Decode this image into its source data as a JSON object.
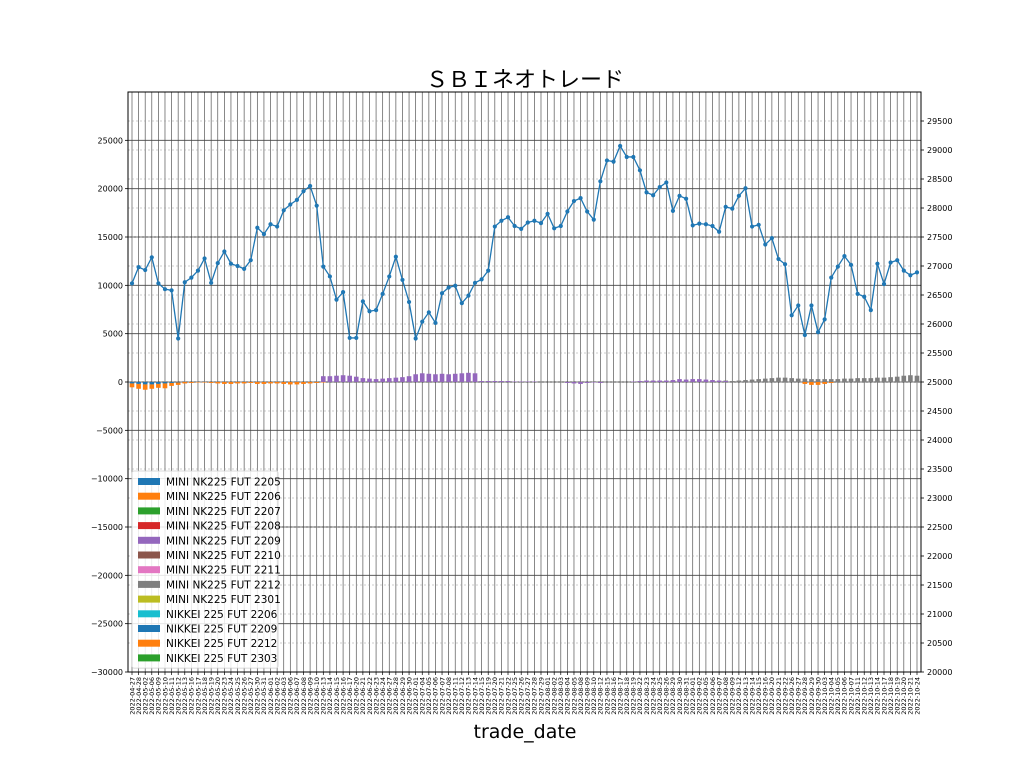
{
  "chart_data": {
    "type": "bar+line",
    "title": "ＳＢＩネオトレード",
    "xlabel": "trade_date",
    "ylabel_left": "",
    "ylabel_right": "",
    "ylim_left": [
      -30000,
      30000
    ],
    "yticks_left": [
      -30000,
      -25000,
      -20000,
      -15000,
      -10000,
      -5000,
      0,
      5000,
      10000,
      15000,
      20000,
      25000
    ],
    "ylim_right": [
      20000,
      30000
    ],
    "yticks_right": [
      20000,
      20500,
      21000,
      21500,
      22000,
      22500,
      23000,
      23500,
      24000,
      24500,
      25000,
      25500,
      26000,
      26500,
      27000,
      27500,
      28000,
      28500,
      29000,
      29500
    ],
    "grid": true,
    "legend_placement": "lower-left",
    "dates": [
      "2022-04-27",
      "2022-04-28",
      "2022-05-02",
      "2022-05-06",
      "2022-05-09",
      "2022-05-10",
      "2022-05-11",
      "2022-05-12",
      "2022-05-13",
      "2022-05-16",
      "2022-05-17",
      "2022-05-18",
      "2022-05-19",
      "2022-05-20",
      "2022-05-23",
      "2022-05-24",
      "2022-05-25",
      "2022-05-26",
      "2022-05-27",
      "2022-05-30",
      "2022-05-31",
      "2022-06-01",
      "2022-06-02",
      "2022-06-03",
      "2022-06-06",
      "2022-06-07",
      "2022-06-08",
      "2022-06-09",
      "2022-06-10",
      "2022-06-13",
      "2022-06-14",
      "2022-06-15",
      "2022-06-16",
      "2022-06-17",
      "2022-06-20",
      "2022-06-21",
      "2022-06-22",
      "2022-06-23",
      "2022-06-24",
      "2022-06-27",
      "2022-06-28",
      "2022-06-29",
      "2022-06-30",
      "2022-07-01",
      "2022-07-04",
      "2022-07-05",
      "2022-07-06",
      "2022-07-07",
      "2022-07-08",
      "2022-07-11",
      "2022-07-12",
      "2022-07-13",
      "2022-07-14",
      "2022-07-15",
      "2022-07-19",
      "2022-07-20",
      "2022-07-21",
      "2022-07-22",
      "2022-07-25",
      "2022-07-26",
      "2022-07-27",
      "2022-07-28",
      "2022-07-29",
      "2022-08-01",
      "2022-08-02",
      "2022-08-03",
      "2022-08-04",
      "2022-08-05",
      "2022-08-08",
      "2022-08-09",
      "2022-08-10",
      "2022-08-12",
      "2022-08-15",
      "2022-08-16",
      "2022-08-17",
      "2022-08-18",
      "2022-08-19",
      "2022-08-22",
      "2022-08-23",
      "2022-08-24",
      "2022-08-25",
      "2022-08-26",
      "2022-08-29",
      "2022-08-30",
      "2022-08-31",
      "2022-09-01",
      "2022-09-02",
      "2022-09-05",
      "2022-09-06",
      "2022-09-07",
      "2022-09-08",
      "2022-09-09",
      "2022-09-12",
      "2022-09-13",
      "2022-09-14",
      "2022-09-15",
      "2022-09-16",
      "2022-09-20",
      "2022-09-21",
      "2022-09-22",
      "2022-09-26",
      "2022-09-27",
      "2022-09-28",
      "2022-09-29",
      "2022-09-30",
      "2022-10-03",
      "2022-10-04",
      "2022-10-05",
      "2022-10-06",
      "2022-10-07",
      "2022-10-11",
      "2022-10-12",
      "2022-10-13",
      "2022-10-14",
      "2022-10-17",
      "2022-10-18",
      "2022-10-19",
      "2022-10-20",
      "2022-10-21",
      "2022-10-24"
    ],
    "line": {
      "name": "",
      "color": "#1f77b4",
      "values": [
        26700,
        26980,
        26930,
        27150,
        26700,
        26600,
        26580,
        25750,
        26720,
        26800,
        26920,
        27130,
        26710,
        27050,
        27250,
        27040,
        27000,
        26950,
        27100,
        27660,
        27550,
        27720,
        27680,
        27960,
        28060,
        28140,
        28290,
        28380,
        28040,
        26990,
        26820,
        26420,
        26550,
        25760,
        25760,
        26390,
        26220,
        26240,
        26520,
        26820,
        27160,
        26760,
        26380,
        25750,
        26040,
        26200,
        26020,
        26530,
        26630,
        26660,
        26360,
        26490,
        26710,
        26770,
        26920,
        27680,
        27780,
        27840,
        27690,
        27640,
        27750,
        27780,
        27740,
        27900,
        27650,
        27690,
        27940,
        28120,
        28170,
        27940,
        27800,
        28460,
        28820,
        28800,
        29070,
        28880,
        28880,
        28650,
        28270,
        28220,
        28360,
        28440,
        27950,
        28210,
        28160,
        27700,
        27730,
        27720,
        27690,
        27590,
        28020,
        27990,
        28210,
        28340,
        27680,
        27710,
        27370,
        27480,
        27120,
        27030,
        26150,
        26320,
        25810,
        26320,
        25860,
        26080,
        26800,
        26990,
        27170,
        27020,
        26520,
        26470,
        26240,
        27040,
        26690,
        27060,
        27100,
        26920,
        26840,
        26890
      ]
    },
    "bar_series": [
      {
        "name": "MINI NK225 FUT 2205",
        "color": "#1f77b4",
        "values": [
          -150,
          -200,
          -250,
          -250,
          -200,
          -150,
          -100,
          -50,
          0,
          0,
          0,
          0,
          0,
          0,
          0,
          0,
          0,
          0,
          0,
          0
        ]
      },
      {
        "name": "MINI NK225 FUT 2206",
        "color": "#ff7f0e",
        "values": [
          -400,
          -500,
          -550,
          -450,
          -400,
          -500,
          -300,
          -250,
          -150,
          -100,
          -50,
          -50,
          -100,
          -150,
          -200,
          -200,
          -150,
          -150,
          -100,
          -200,
          -200,
          -150,
          -150,
          -200,
          -250,
          -250,
          -200,
          -150,
          -100,
          -50,
          0,
          0,
          0,
          0,
          0,
          0
        ]
      },
      {
        "name": "MINI NK225 FUT 2207",
        "color": "#2ca02c",
        "values": []
      },
      {
        "name": "MINI NK225 FUT 2208",
        "color": "#d62728",
        "values": []
      },
      {
        "name": "MINI NK225 FUT 2209",
        "color": "#9467bd",
        "values": [
          0,
          0,
          0,
          0,
          0,
          0,
          0,
          0,
          0,
          0,
          0,
          0,
          0,
          0,
          0,
          0,
          0,
          0,
          0,
          0,
          0,
          0,
          0,
          0,
          0,
          0,
          0,
          0,
          0,
          600,
          600,
          650,
          700,
          650,
          550,
          400,
          350,
          300,
          350,
          400,
          450,
          500,
          600,
          800,
          900,
          850,
          800,
          850,
          800,
          850,
          900,
          950,
          900,
          100,
          100,
          100,
          100,
          100,
          50,
          50,
          50,
          50,
          0,
          0,
          0,
          0,
          -100,
          -150,
          -200,
          -100,
          -50,
          -100,
          0,
          0,
          0,
          0,
          50,
          100,
          150,
          150,
          150,
          150,
          200,
          300,
          250,
          300,
          300,
          250,
          200,
          150,
          100,
          0,
          0,
          0,
          0,
          0,
          0,
          0,
          0,
          0,
          0,
          0,
          0,
          0,
          0,
          0,
          0,
          0,
          0,
          0,
          0,
          0,
          0,
          0,
          0,
          0,
          0,
          0,
          0,
          0
        ]
      },
      {
        "name": "MINI NK225 FUT 2210",
        "color": "#8c564b",
        "values": []
      },
      {
        "name": "MINI NK225 FUT 2211",
        "color": "#e377c2",
        "values": []
      },
      {
        "name": "MINI NK225 FUT 2212",
        "color": "#7f7f7f",
        "values": [
          0,
          0,
          0,
          0,
          0,
          0,
          0,
          0,
          0,
          0,
          0,
          0,
          0,
          0,
          0,
          0,
          0,
          0,
          0,
          0,
          0,
          0,
          0,
          0,
          0,
          0,
          0,
          0,
          0,
          0,
          0,
          0,
          0,
          0,
          0,
          0,
          0,
          0,
          0,
          0,
          0,
          0,
          0,
          0,
          0,
          0,
          0,
          0,
          0,
          0,
          0,
          0,
          0,
          0,
          0,
          0,
          0,
          0,
          0,
          0,
          0,
          0,
          0,
          0,
          0,
          0,
          0,
          0,
          0,
          0,
          0,
          0,
          0,
          0,
          0,
          0,
          0,
          0,
          0,
          0,
          0,
          0,
          0,
          0,
          0,
          0,
          0,
          0,
          0,
          0,
          50,
          100,
          150,
          200,
          250,
          300,
          350,
          400,
          450,
          450,
          400,
          350,
          350,
          300,
          300,
          300,
          300,
          300,
          350,
          350,
          400,
          400,
          400,
          450,
          450,
          500,
          550,
          650,
          700,
          650
        ]
      },
      {
        "name": "MINI NK225 FUT 2301",
        "color": "#bcbd22",
        "values": []
      },
      {
        "name": "NIKKEI 225 FUT 2206",
        "color": "#17becf",
        "values": []
      },
      {
        "name": "NIKKEI 225 FUT 2209",
        "color": "#1f77b4",
        "values": []
      },
      {
        "name": "NIKKEI 225 FUT 2212",
        "color": "#ff7f0e",
        "values": [
          0,
          0,
          0,
          0,
          0,
          0,
          0,
          0,
          0,
          0,
          0,
          0,
          0,
          0,
          0,
          0,
          0,
          0,
          0,
          0,
          0,
          0,
          0,
          0,
          0,
          0,
          0,
          0,
          0,
          0,
          0,
          0,
          0,
          0,
          0,
          0,
          0,
          0,
          0,
          0,
          0,
          0,
          0,
          0,
          0,
          0,
          0,
          0,
          0,
          0,
          0,
          0,
          0,
          0,
          0,
          0,
          0,
          0,
          0,
          0,
          0,
          0,
          0,
          0,
          0,
          0,
          0,
          0,
          0,
          0,
          0,
          0,
          0,
          0,
          0,
          0,
          0,
          0,
          0,
          0,
          0,
          0,
          0,
          0,
          0,
          0,
          0,
          0,
          0,
          0,
          0,
          0,
          0,
          0,
          0,
          0,
          0,
          0,
          0,
          0,
          0,
          0,
          -200,
          -300,
          -300,
          -200,
          -100,
          0,
          0,
          0,
          0,
          0,
          0,
          0,
          0,
          0,
          0,
          0,
          0,
          0
        ]
      },
      {
        "name": "NIKKEI 225 FUT 2303",
        "color": "#2ca02c",
        "values": []
      }
    ]
  }
}
